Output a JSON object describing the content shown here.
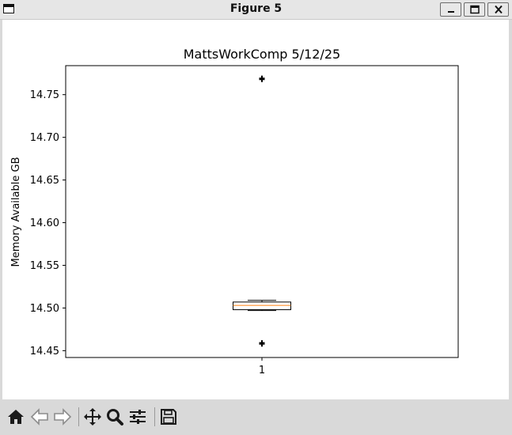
{
  "window": {
    "title": "Figure 5",
    "controls": [
      "minimize",
      "maximize",
      "close"
    ]
  },
  "toolbar": {
    "icons": [
      "home-icon",
      "back-icon",
      "forward-icon",
      "pan-icon",
      "zoom-icon",
      "configure-subplots-icon",
      "save-icon"
    ]
  },
  "chart_data": {
    "type": "box",
    "title": "MattsWorkComp 5/12/25",
    "xlabel": "",
    "ylabel": "Memory Available GB",
    "categories": [
      "1"
    ],
    "ylim": [
      14.442,
      14.784
    ],
    "yticks": [
      14.45,
      14.5,
      14.55,
      14.6,
      14.65,
      14.7,
      14.75
    ],
    "ytick_labels": [
      "14.45",
      "14.50",
      "14.55",
      "14.60",
      "14.65",
      "14.70",
      "14.75"
    ],
    "boxes": [
      {
        "label": "1",
        "whisker_low": 14.497,
        "q1": 14.498,
        "median": 14.503,
        "q3": 14.507,
        "whisker_high": 14.509,
        "outliers": [
          14.459,
          14.458,
          14.769,
          14.768
        ]
      }
    ],
    "grid": false,
    "colors": {
      "median": "#ff7f0e",
      "box": "#000000",
      "axes": "#000000"
    }
  }
}
